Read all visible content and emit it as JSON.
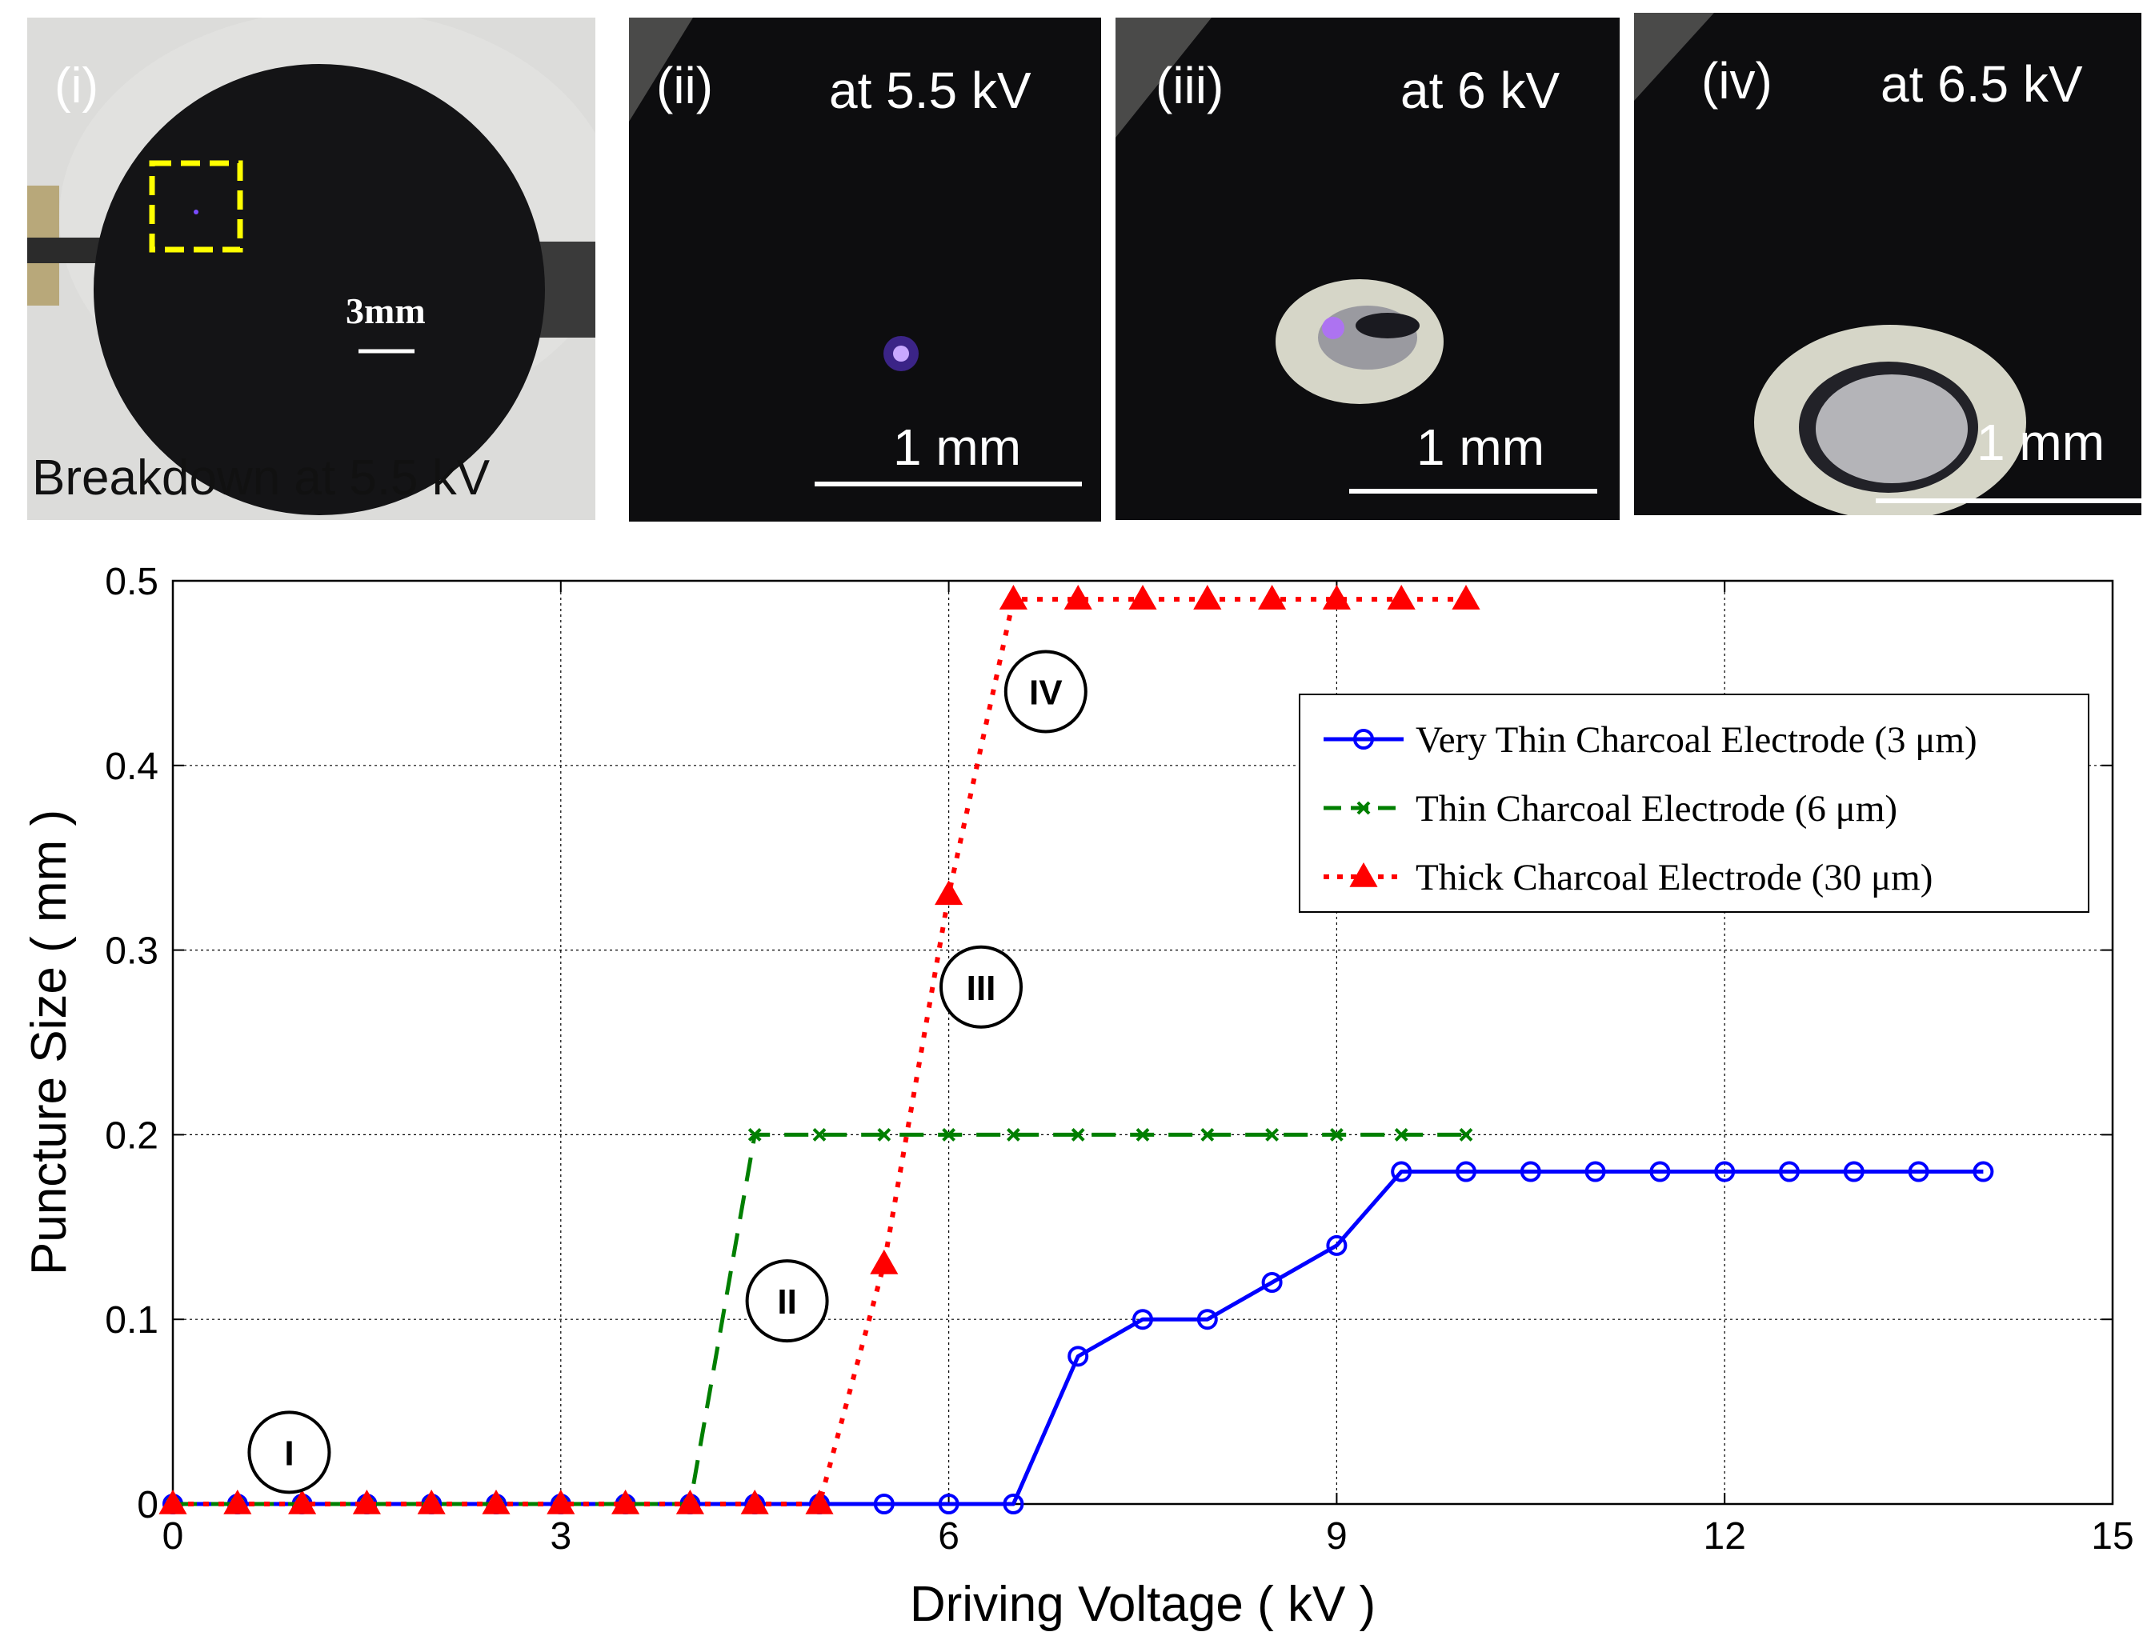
{
  "panels": [
    {
      "id": "i",
      "label": "(i)",
      "note": "",
      "caption": "Breakdown at 5.5 kV",
      "scale_label": "3mm"
    },
    {
      "id": "ii",
      "label": "(ii)",
      "note": "at 5.5 kV",
      "caption": "",
      "scale_label": "1 mm"
    },
    {
      "id": "iii",
      "label": "(iii)",
      "note": "at 6 kV",
      "caption": "",
      "scale_label": "1 mm"
    },
    {
      "id": "iv",
      "label": "(iv)",
      "note": "at 6.5 kV",
      "caption": "",
      "scale_label": "1 mm"
    }
  ],
  "colors": {
    "blue": "#0000ff",
    "green": "#007f00",
    "red": "#ff0000",
    "highlight_box": "#ffff00",
    "photo_dark": "#0d0d0f",
    "photo_light": "#d9d9d7"
  },
  "chart_data": {
    "type": "line",
    "title": "",
    "xlabel": "Driving Voltage ( kV )",
    "ylabel": "Puncture Size ( mm )",
    "xlim": [
      0,
      15
    ],
    "ylim": [
      0,
      0.5
    ],
    "xticks": [
      0,
      3,
      6,
      9,
      12,
      15
    ],
    "yticks": [
      0,
      0.1,
      0.2,
      0.3,
      0.4,
      0.5
    ],
    "xtick_labels": [
      "0",
      "3",
      "6",
      "9",
      "12",
      "15"
    ],
    "ytick_labels": [
      "0",
      "0.1",
      "0.2",
      "0.3",
      "0.4",
      "0.5"
    ],
    "grid": true,
    "legend_position": "upper-right",
    "series": [
      {
        "name": "Very Thin Charcoal Electrode (3 μm)",
        "color": "#0000ff",
        "line_style": "solid",
        "marker": "circle",
        "x": [
          0,
          0.5,
          1,
          1.5,
          2,
          2.5,
          3,
          3.5,
          4,
          4.5,
          5,
          5.5,
          6,
          6.5,
          7,
          7.5,
          8,
          8.5,
          9,
          9.5,
          10,
          10.5,
          11,
          11.5,
          12,
          12.5,
          13,
          13.5,
          14
        ],
        "y": [
          0,
          0,
          0,
          0,
          0,
          0,
          0,
          0,
          0,
          0,
          0,
          0,
          0,
          0,
          0.08,
          0.1,
          0.1,
          0.12,
          0.14,
          0.18,
          0.18,
          0.18,
          0.18,
          0.18,
          0.18,
          0.18,
          0.18,
          0.18,
          0.18
        ]
      },
      {
        "name": "Thin Charcoal Electrode (6 μm)",
        "color": "#007f00",
        "line_style": "dashed",
        "marker": "x",
        "x": [
          0,
          0.5,
          1,
          1.5,
          2,
          2.5,
          3,
          3.5,
          4,
          4.5,
          5,
          5.5,
          6,
          6.5,
          7,
          7.5,
          8,
          8.5,
          9,
          9.5,
          10
        ],
        "y": [
          0,
          0,
          0,
          0,
          0,
          0,
          0,
          0,
          0,
          0.2,
          0.2,
          0.2,
          0.2,
          0.2,
          0.2,
          0.2,
          0.2,
          0.2,
          0.2,
          0.2,
          0.2
        ]
      },
      {
        "name": "Thick Charcoal Electrode (30 μm)",
        "color": "#ff0000",
        "line_style": "dotted",
        "marker": "triangle",
        "x": [
          0,
          0.5,
          1,
          1.5,
          2,
          2.5,
          3,
          3.5,
          4,
          4.5,
          5,
          5.5,
          6,
          6.5,
          7,
          7.5,
          8,
          8.5,
          9,
          9.5,
          10
        ],
        "y": [
          0,
          0,
          0,
          0,
          0,
          0,
          0,
          0,
          0,
          0,
          0,
          0.13,
          0.33,
          0.49,
          0.49,
          0.49,
          0.49,
          0.49,
          0.49,
          0.49,
          0.49
        ]
      }
    ],
    "annotations": [
      {
        "text": "I",
        "x": 0.9,
        "y": 0.028
      },
      {
        "text": "II",
        "x": 4.75,
        "y": 0.11
      },
      {
        "text": "III",
        "x": 6.25,
        "y": 0.28
      },
      {
        "text": "IV",
        "x": 6.75,
        "y": 0.44
      }
    ]
  }
}
